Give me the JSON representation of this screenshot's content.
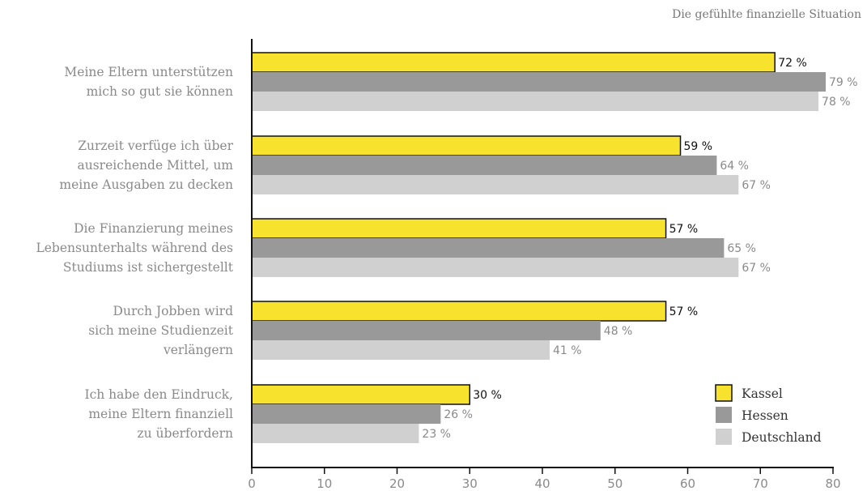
{
  "chart_data": {
    "type": "bar",
    "orientation": "horizontal",
    "title": "Die gefühlte finanzielle Situation",
    "categories": [
      "Meine Eltern unterstützen|mich so gut sie können",
      "Zurzeit verfüge ich über|ausreichende Mittel, um|meine Ausgaben zu decken",
      "Die Finanzierung meines|Lebensunterhalts während des|Studiums ist sichergestellt",
      "Durch Jobben wird|sich meine Studienzeit|verlängern",
      "Ich habe den Eindruck,|meine Eltern finanziell|zu überfordern"
    ],
    "series": [
      {
        "name": "Kassel",
        "color": "#f7e22d",
        "values": [
          72,
          59,
          57,
          57,
          30
        ]
      },
      {
        "name": "Hessen",
        "color": "#999999",
        "values": [
          79,
          64,
          65,
          48,
          26
        ]
      },
      {
        "name": "Deutschland",
        "color": "#d0d0d0",
        "values": [
          78,
          67,
          67,
          41,
          23
        ]
      }
    ],
    "value_suffix": " %",
    "xlim": [
      0,
      80
    ],
    "xticks": [
      0,
      10,
      20,
      30,
      40,
      50,
      60,
      70,
      80
    ],
    "grid": false,
    "legend": "bottom-right"
  }
}
